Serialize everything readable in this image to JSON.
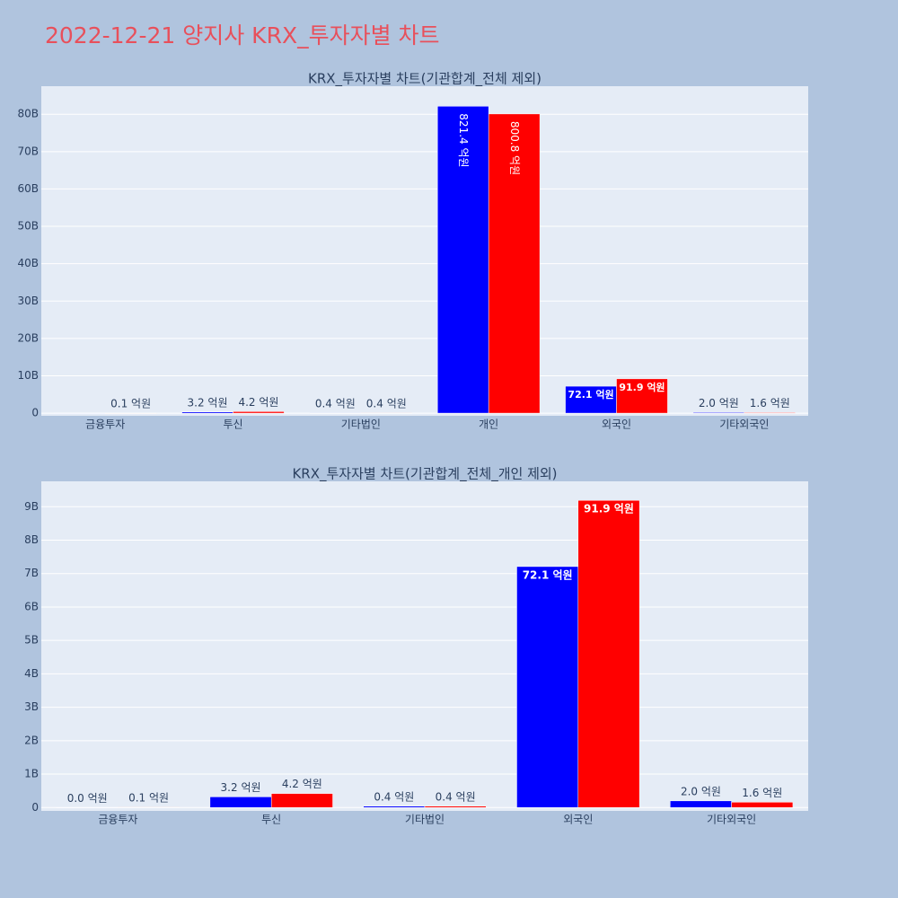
{
  "title": "2022-12-21 양지사 KRX_투자자별 차트",
  "chart_data": [
    {
      "type": "bar",
      "title": "KRX_투자자별 차트(기관합계_전체 제외)",
      "categories": [
        "금융투자",
        "투신",
        "기타법인",
        "개인",
        "외국인",
        "기타외국인"
      ],
      "series": [
        {
          "color": "#0000ff",
          "values": [
            0,
            320000000,
            40000000,
            82140000000,
            7210000000,
            200000000
          ],
          "value_labels": [
            null,
            "3.2 억원",
            "0.4 억원",
            "821.4 억원",
            "72.1 억원",
            "2.0 억원"
          ]
        },
        {
          "color": "#ff0000",
          "values": [
            10000000,
            420000000,
            40000000,
            80080000000,
            9190000000,
            160000000
          ],
          "value_labels": [
            "0.1 억원",
            "4.2 억원",
            "0.4 억원",
            "800.8 억원",
            "91.9 억원",
            "1.6 억원"
          ]
        }
      ],
      "ylim": [
        -700000000,
        87500000000
      ],
      "yticks": [
        {
          "value": 0,
          "label": "0"
        },
        {
          "value": 10000000000,
          "label": "10B"
        },
        {
          "value": 20000000000,
          "label": "20B"
        },
        {
          "value": 30000000000,
          "label": "30B"
        },
        {
          "value": 40000000000,
          "label": "40B"
        },
        {
          "value": 50000000000,
          "label": "50B"
        },
        {
          "value": 60000000000,
          "label": "60B"
        },
        {
          "value": 70000000000,
          "label": "70B"
        },
        {
          "value": 80000000000,
          "label": "80B"
        }
      ],
      "grid": true
    },
    {
      "type": "bar",
      "title": "KRX_투자자별 차트(기관합계_전체_개인 제외)",
      "categories": [
        "금융투자",
        "투신",
        "기타법인",
        "외국인",
        "기타외국인"
      ],
      "series": [
        {
          "color": "#0000ff",
          "values": [
            0,
            320000000,
            40000000,
            7210000000,
            200000000
          ],
          "value_labels": [
            "0.0 억원",
            "3.2 억원",
            "0.4 억원",
            "72.1 억원",
            "2.0 억원"
          ]
        },
        {
          "color": "#ff0000",
          "values": [
            10000000,
            420000000,
            40000000,
            9190000000,
            160000000
          ],
          "value_labels": [
            "0.1 억원",
            "4.2 억원",
            "0.4 억원",
            "91.9 억원",
            "1.6 억원"
          ]
        }
      ],
      "ylim": [
        -100000000,
        9760000000
      ],
      "yticks": [
        {
          "value": 0,
          "label": "0"
        },
        {
          "value": 1000000000,
          "label": "1B"
        },
        {
          "value": 2000000000,
          "label": "2B"
        },
        {
          "value": 3000000000,
          "label": "3B"
        },
        {
          "value": 4000000000,
          "label": "4B"
        },
        {
          "value": 5000000000,
          "label": "5B"
        },
        {
          "value": 6000000000,
          "label": "6B"
        },
        {
          "value": 7000000000,
          "label": "7B"
        },
        {
          "value": 8000000000,
          "label": "8B"
        },
        {
          "value": 9000000000,
          "label": "9B"
        }
      ],
      "grid": true
    }
  ]
}
